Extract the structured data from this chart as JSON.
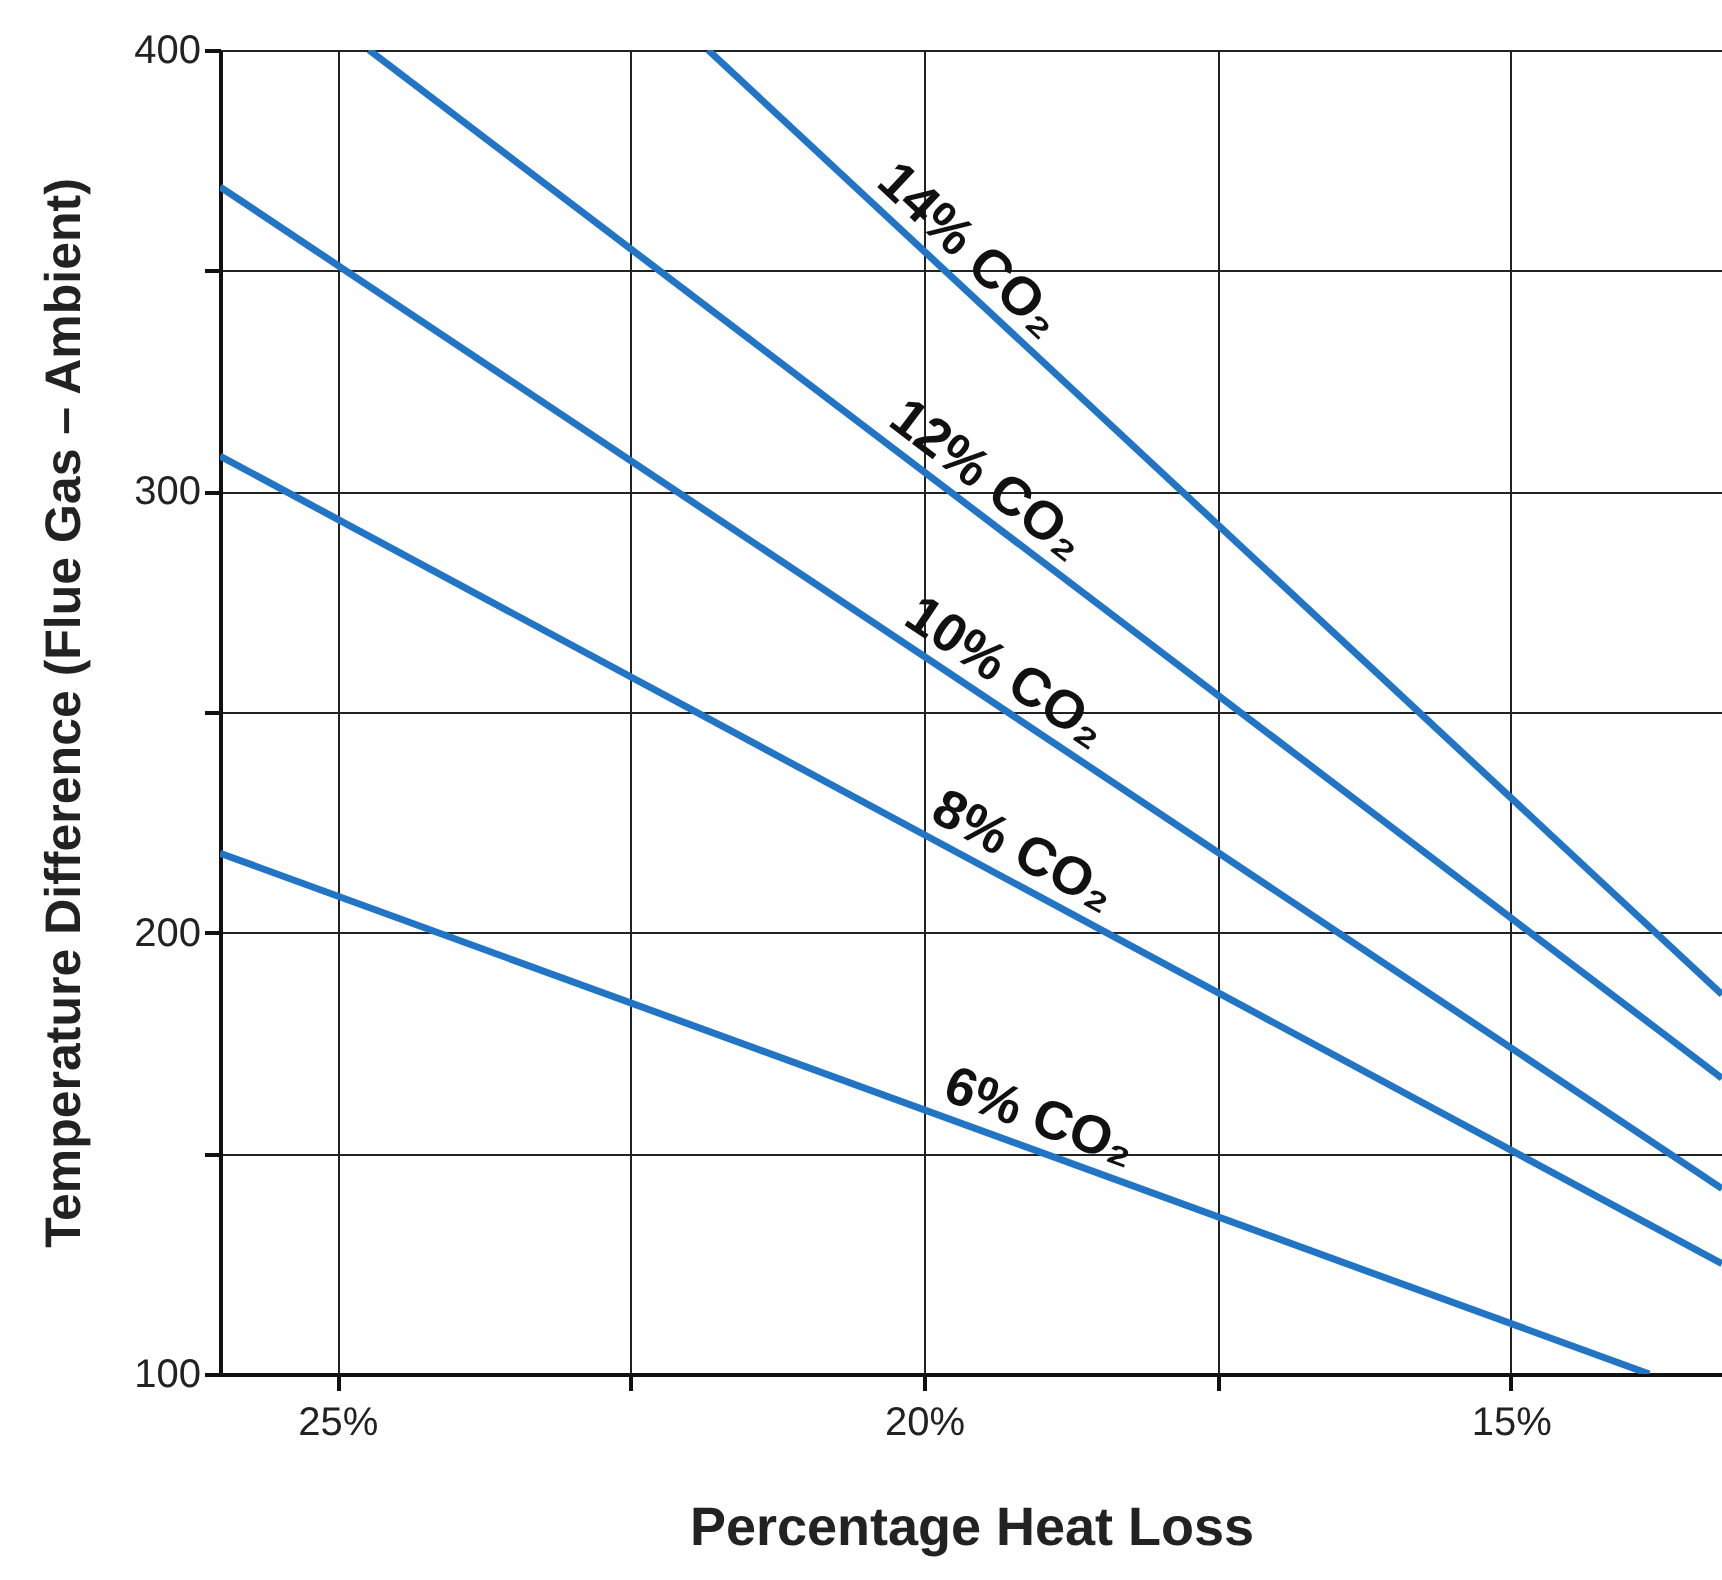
{
  "chart_data": {
    "type": "line",
    "xlabel": "Percentage Heat Loss",
    "ylabel": "Temperature Difference (Flue Gas – Ambient)",
    "xlim": [
      26,
      13.2
    ],
    "ylim": [
      100,
      400
    ],
    "xticks": [
      {
        "value": 25,
        "label": "25%"
      },
      {
        "value": 22.5,
        "label": null
      },
      {
        "value": 20,
        "label": "20%"
      },
      {
        "value": 17.5,
        "label": null
      },
      {
        "value": 15,
        "label": "15%"
      }
    ],
    "yticks": [
      100,
      {
        "value": 150,
        "label": null
      },
      200,
      {
        "value": 250,
        "label": null
      },
      300,
      {
        "value": 350,
        "label": null
      },
      400
    ],
    "grid": true,
    "marker": "none",
    "line_style": "solid",
    "series": [
      {
        "color": "#2274c4",
        "x": [
          21.84,
          13.2
        ],
        "values": [
          400,
          186
        ]
      },
      {
        "color": "#2274c4",
        "x": [
          24.73,
          13.2
        ],
        "values": [
          400,
          167
        ]
      },
      {
        "color": "#2274c4",
        "x": [
          26,
          13.2
        ],
        "values": [
          369,
          142
        ]
      },
      {
        "color": "#2274c4",
        "x": [
          26,
          13.2
        ],
        "values": [
          308,
          125
        ]
      },
      {
        "color": "#2274c4",
        "x": [
          26,
          13.82
        ],
        "values": [
          218,
          100
        ]
      }
    ],
    "annotations": [
      "14% CO₂",
      "12% CO₂",
      "10% CO₂",
      "8% CO₂",
      "6% CO₂"
    ]
  }
}
